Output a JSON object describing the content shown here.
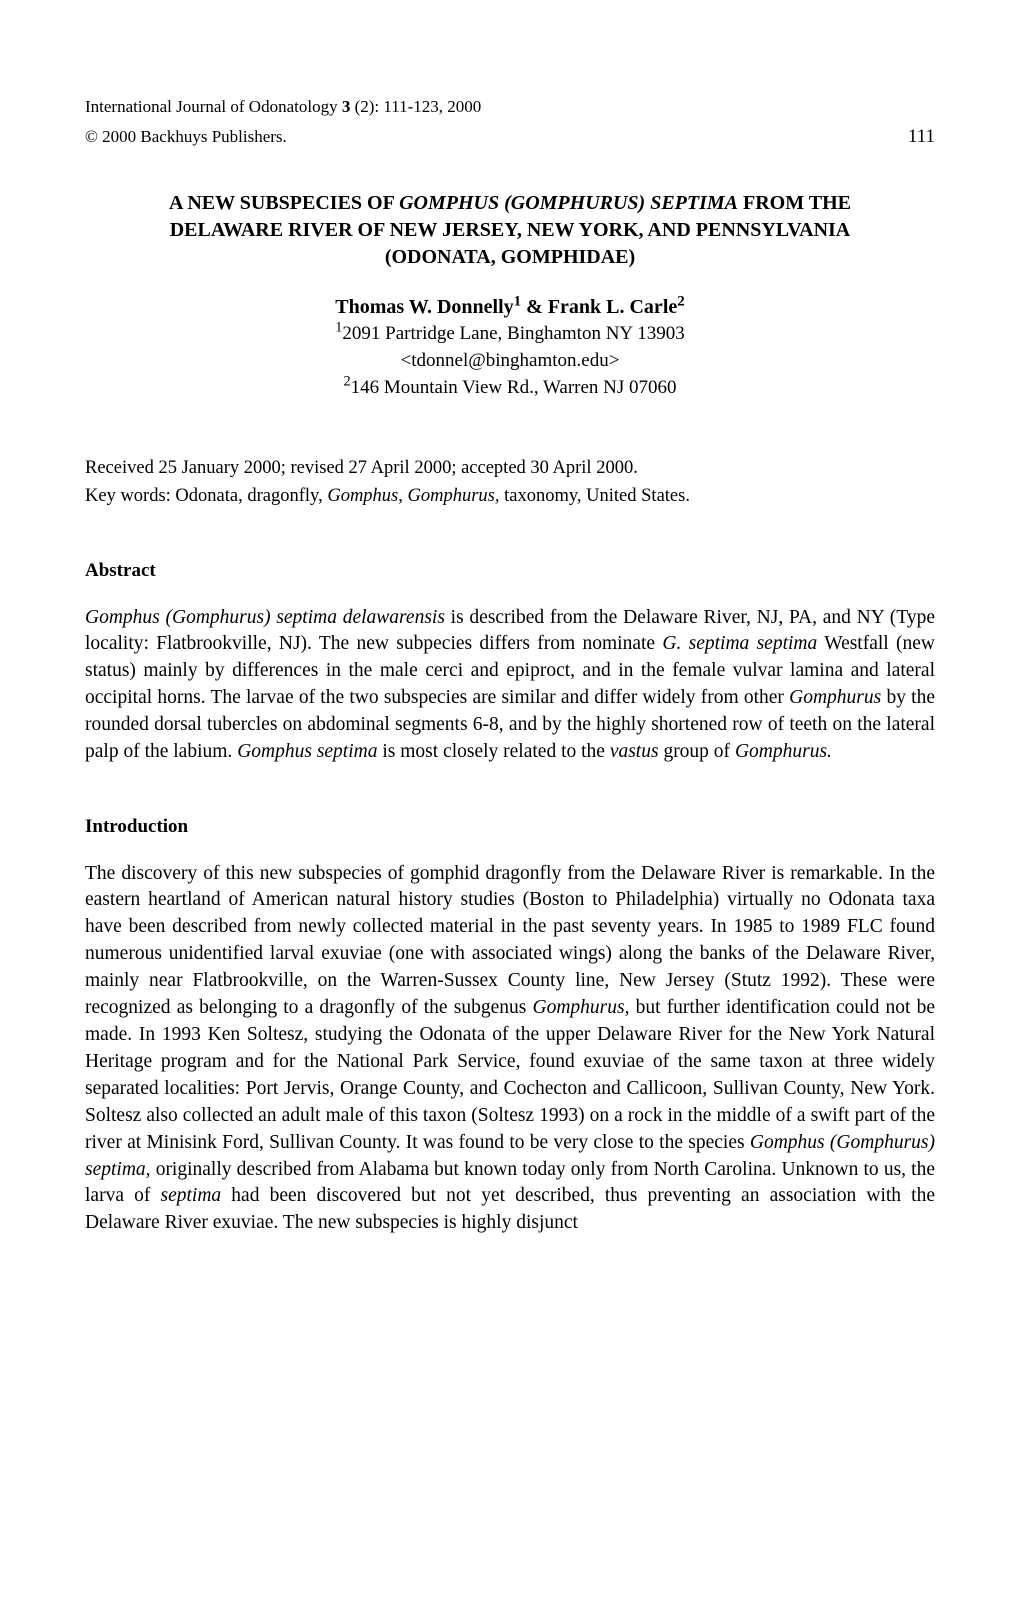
{
  "header": {
    "journal_prefix": "International Journal of Odonatology ",
    "volume_issue": "3",
    "issue_pages": " (2): 111-123, 2000",
    "copyright": "© 2000 Backhuys Publishers.",
    "page_number": "111"
  },
  "title": {
    "line1_before": "A NEW SUBSPECIES OF ",
    "line1_italic": "GOMPHUS (GOMPHURUS) SEPTIMA",
    "line1_after": " FROM THE",
    "line2": "DELAWARE RIVER OF NEW JERSEY, NEW YORK, AND PENNSYLVANIA",
    "line3": "(ODONATA, GOMPHIDAE)"
  },
  "authors": {
    "name1": "Thomas W. Donnelly",
    "sup1": "1",
    "amp": " & ",
    "name2": "Frank L. Carle",
    "sup2": "2",
    "aff1_sup": "1",
    "aff1": "2091 Partridge Lane, Binghamton NY 13903",
    "email": "<tdonnel@binghamton.edu>",
    "aff2_sup": "2",
    "aff2": "146 Mountain View Rd., Warren NJ 07060"
  },
  "received": "Received 25 January 2000; revised 27 April 2000; accepted 30 April 2000.",
  "keywords": {
    "prefix": "Key words: Odonata, dragonfly, ",
    "italic": "Gomphus, Gomphurus,",
    "suffix": " taxonomy, United States."
  },
  "abstract_heading": "Abstract",
  "abstract": {
    "t1_italic": "Gomphus (Gomphurus) septima delawarensis",
    "t1": " is described from the Delaware River, NJ, PA, and NY (Type locality: Flatbrookville, NJ). The new subpecies differs from nominate ",
    "t2_italic": "G. septima septima",
    "t2": " Westfall (new status) mainly by differences in the male cerci and epiproct, and in the female vulvar lamina and lateral occipital horns. The larvae of the two subspecies are similar and differ widely from other ",
    "t3_italic": "Gomphurus",
    "t3": " by the rounded dorsal tubercles on abdominal segments 6-8, and by the highly shortened row of teeth on the lateral palp of the labium. ",
    "t4_italic": "Gomphus septima",
    "t4": " is most closely related to the ",
    "t5_italic": "vastus",
    "t5": " group of ",
    "t6_italic": "Gomphurus.",
    "t6": ""
  },
  "introduction_heading": "Introduction",
  "introduction": {
    "t1": "The discovery of this new subspecies of gomphid dragonfly from the Delaware River is remarkable. In the eastern heartland of American natural history studies (Boston to Philadelphia) virtually no Odonata taxa have been described from newly collected material in the past seventy years. In 1985 to 1989 FLC found numerous unidentified larval exuviae (one with associated wings) along the banks of the Delaware River, mainly near Flatbrookville, on the Warren-Sussex County line, New Jersey (Stutz 1992). These were recognized as belonging to a dragonfly of the subgenus ",
    "t2_italic": "Gomphurus,",
    "t2": " but further identification could not be made. In 1993 Ken Soltesz, studying the Odonata of the upper Delaware River for the New York Natural Heritage program and for the National Park Service, found exuviae of the same taxon at three widely separated localities: Port Jervis, Orange County, and Cochecton and Callicoon, Sullivan County, New York. Soltesz also collected an adult male of this taxon (Soltesz 1993) on a rock in the middle of a swift part of the river at Minisink Ford, Sullivan County. It was found to be very close to the species ",
    "t3_italic": "Gomphus (Gomphurus) septima,",
    "t3": " originally described from Alabama but known today only from North Carolina. Unknown to us, the larva of ",
    "t4_italic": "septima",
    "t4": " had been discovered but not yet described, thus preventing an association with the Delaware River exuviae. The new subspecies is highly disjunct"
  }
}
